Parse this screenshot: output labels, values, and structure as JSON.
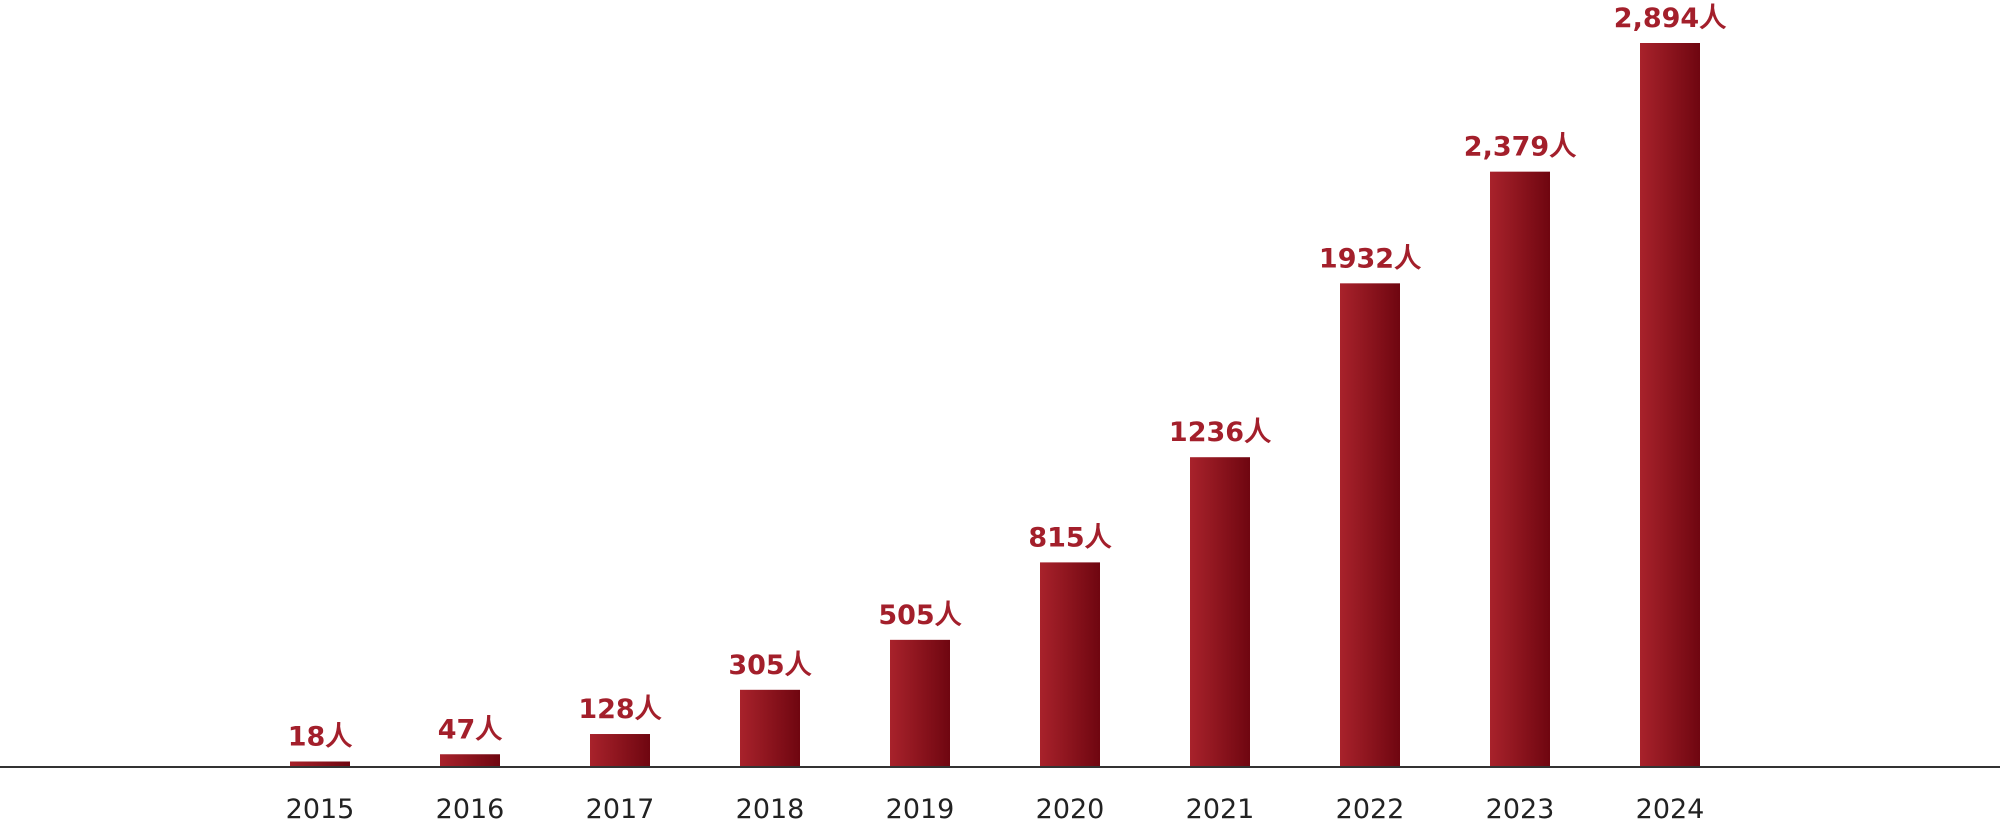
{
  "chart_data": {
    "type": "bar",
    "categories": [
      "2015",
      "2016",
      "2017",
      "2018",
      "2019",
      "2020",
      "2021",
      "2022",
      "2023",
      "2024"
    ],
    "values": [
      18,
      47,
      128,
      305,
      505,
      815,
      1236,
      1932,
      2379,
      2894
    ],
    "value_labels": [
      "18人",
      "47人",
      "128人",
      "305人",
      "505人",
      "815人",
      "1236人",
      "1932人",
      "2,379人",
      "2,894人"
    ],
    "color": "#8f1a22"
  }
}
